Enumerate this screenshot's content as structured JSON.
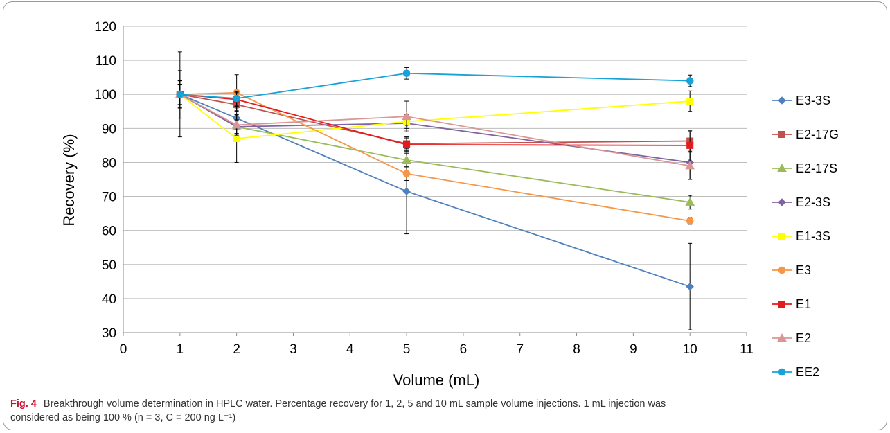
{
  "chart_data": {
    "type": "line",
    "title": "",
    "xlabel": "Volume (mL)",
    "ylabel": "Recovery (%)",
    "xlim": [
      0,
      11
    ],
    "ylim": [
      30,
      120
    ],
    "x_ticks": [
      "0",
      "1",
      "2",
      "3",
      "4",
      "5",
      "6",
      "7",
      "8",
      "9",
      "10",
      "11"
    ],
    "y_ticks": [
      "30",
      "40",
      "50",
      "60",
      "70",
      "80",
      "90",
      "100",
      "110",
      "120"
    ],
    "grid": "horizontal",
    "legend_position": "right",
    "x": [
      1,
      2,
      5,
      10
    ],
    "series": [
      {
        "name": "E3-3S",
        "color": "#4f81bd",
        "marker": "diamond",
        "values": [
          100,
          93,
          71.5,
          43.5
        ],
        "errors": [
          4,
          3,
          12.5,
          12.7
        ]
      },
      {
        "name": "E2-17G",
        "color": "#c0504d",
        "marker": "square",
        "values": [
          100,
          97,
          85.5,
          86.3
        ],
        "errors": [
          3,
          2,
          2,
          3
        ]
      },
      {
        "name": "E2-17S",
        "color": "#9bbb59",
        "marker": "triangle",
        "values": [
          100,
          90.5,
          80.7,
          68.3
        ],
        "errors": [
          3,
          2,
          2,
          2
        ]
      },
      {
        "name": "E2-3S",
        "color": "#8064a2",
        "marker": "diamond",
        "values": [
          100,
          90.5,
          91.5,
          80
        ],
        "errors": [
          3,
          2,
          2,
          5
        ]
      },
      {
        "name": "E1-3S",
        "color": "#ffff00",
        "marker": "square",
        "values": [
          100,
          87,
          92,
          98
        ],
        "errors": [
          12.5,
          7,
          2,
          3
        ]
      },
      {
        "name": "E3",
        "color": "#f79646",
        "marker": "circle",
        "values": [
          100,
          100.5,
          76.7,
          62.8
        ],
        "errors": [
          4,
          5.3,
          2,
          1
        ]
      },
      {
        "name": "E1",
        "color": "#e41a1c",
        "marker": "square",
        "values": [
          100,
          98.5,
          85.2,
          85
        ],
        "errors": [
          3,
          2,
          2,
          4
        ]
      },
      {
        "name": "E2",
        "color": "#d99694",
        "marker": "triangle",
        "values": [
          100,
          91,
          93.5,
          79
        ],
        "errors": [
          7,
          3,
          4.5,
          4
        ]
      },
      {
        "name": "EE2",
        "color": "#17a2d8",
        "marker": "circle",
        "values": [
          100,
          98.8,
          106.2,
          104
        ],
        "errors": [
          4,
          2,
          1.7,
          1.7
        ]
      }
    ]
  },
  "caption": {
    "fig_label": "Fig. 4",
    "text_line1": "Breakthrough volume determination in HPLC water. Percentage recovery for 1, 2, 5 and 10 mL sample volume injections. 1 mL injection was",
    "text_line2": "considered as being 100 % (n = 3, C = 200 ng L⁻¹)"
  }
}
